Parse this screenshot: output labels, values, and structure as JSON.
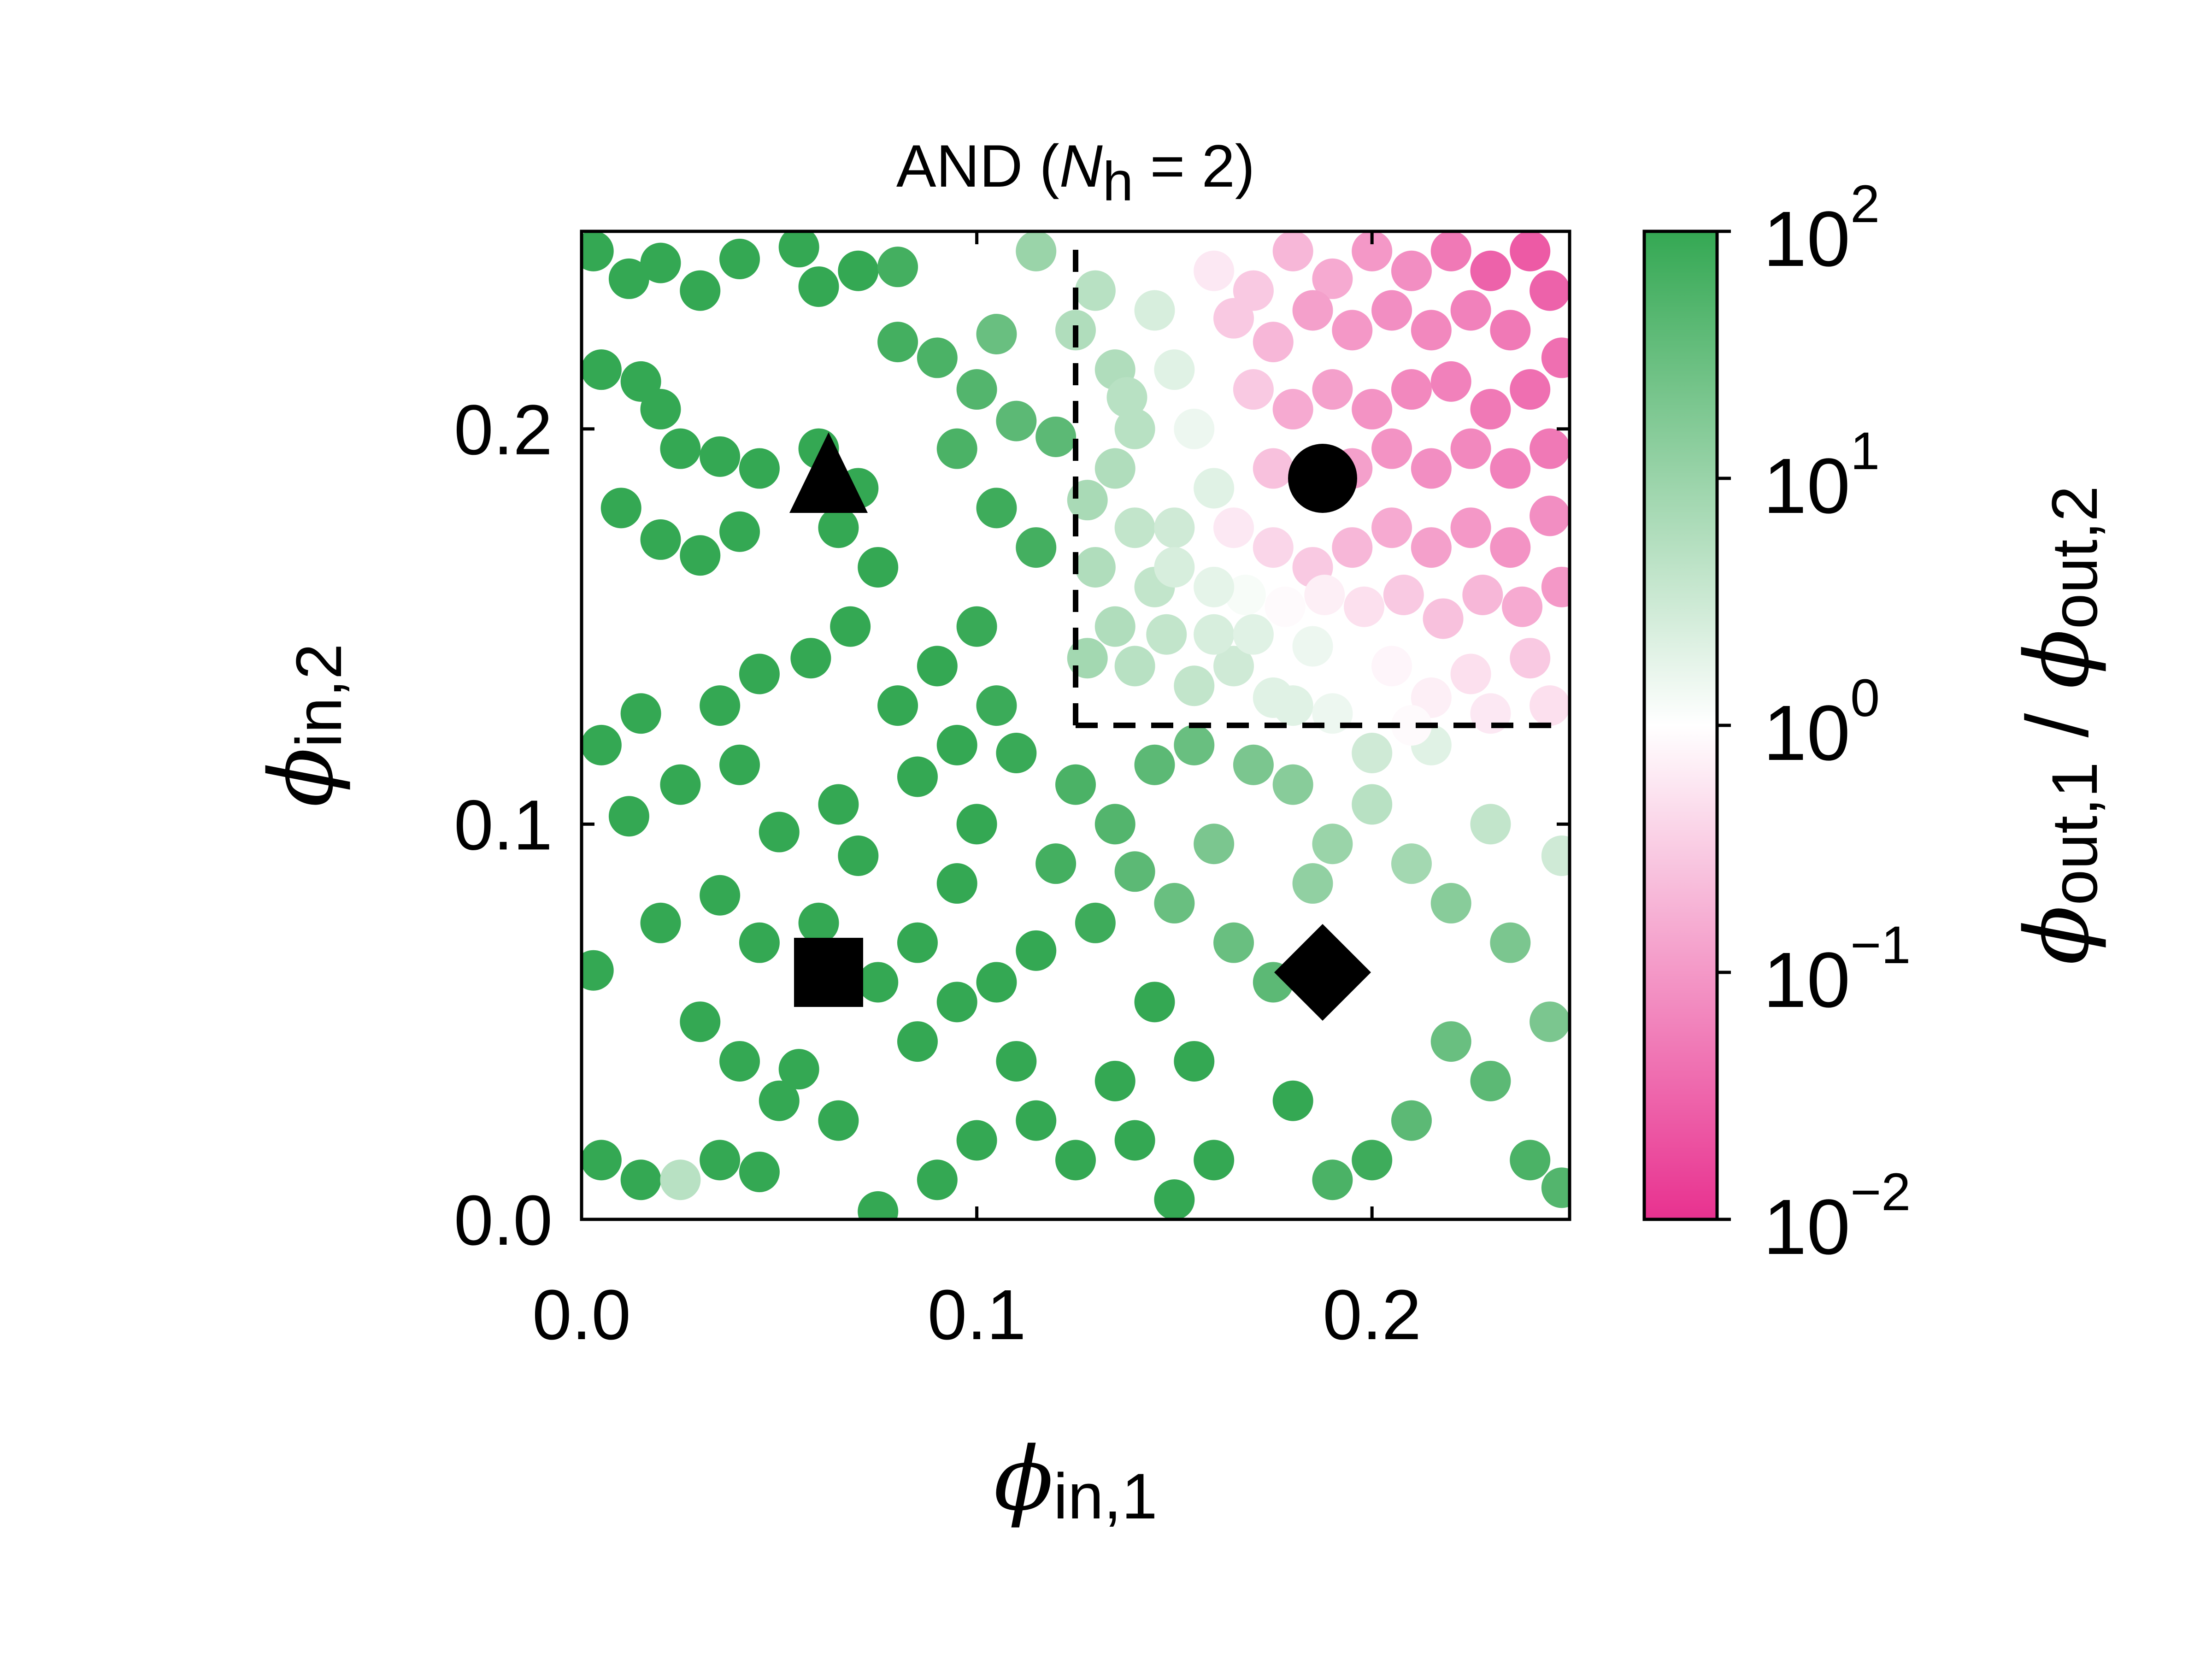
{
  "chart_data": {
    "type": "scatter",
    "title": "AND (N_h = 2)",
    "title_parts": {
      "prefix": "AND (",
      "var": "N",
      "sub": "h",
      "suffix": " = 2)"
    },
    "xlabel": {
      "symbol": "ϕ",
      "sub": "in,1"
    },
    "ylabel": {
      "symbol": "ϕ",
      "sub": "in,2"
    },
    "xlim": [
      0.0,
      0.25
    ],
    "ylim": [
      0.0,
      0.25
    ],
    "xticks": [
      0.0,
      0.1,
      0.2
    ],
    "yticks": [
      0.0,
      0.1,
      0.2
    ],
    "xtick_labels": [
      "0.0",
      "0.1",
      "0.2"
    ],
    "ytick_labels": [
      "0.0",
      "0.1",
      "0.2"
    ],
    "grid": false,
    "threshold": {
      "x": 0.125,
      "y": 0.125,
      "style": "dashed"
    },
    "colorbar": {
      "label": {
        "symbol1": "ϕ",
        "sub1": "out,1",
        "sep": " / ",
        "symbol2": "ϕ",
        "sub2": "out,2"
      },
      "scale": "log",
      "range": [
        0.01,
        100
      ],
      "ticks": [
        {
          "value": 100,
          "base": "10",
          "exp": "2"
        },
        {
          "value": 10,
          "base": "10",
          "exp": "1"
        },
        {
          "value": 1,
          "base": "10",
          "exp": "0"
        },
        {
          "value": 0.1,
          "base": "10",
          "exp": "−1"
        },
        {
          "value": 0.01,
          "base": "10",
          "exp": "−2"
        }
      ],
      "colors": {
        "high": "#34a853",
        "mid": "#ffffff",
        "low": "#e8318f"
      }
    },
    "markers": [
      {
        "shape": "square",
        "x": 0.0625,
        "y": 0.0625
      },
      {
        "shape": "diamond",
        "x": 0.1875,
        "y": 0.0625
      },
      {
        "shape": "triangle",
        "x": 0.0625,
        "y": 0.1875
      },
      {
        "shape": "circle",
        "x": 0.1875,
        "y": 0.1875
      }
    ],
    "points": [
      [
        0.003,
        0.245,
        100
      ],
      [
        0.012,
        0.238,
        100
      ],
      [
        0.02,
        0.242,
        100
      ],
      [
        0.03,
        0.235,
        100
      ],
      [
        0.04,
        0.243,
        100
      ],
      [
        0.055,
        0.246,
        100
      ],
      [
        0.06,
        0.236,
        100
      ],
      [
        0.07,
        0.24,
        100
      ],
      [
        0.08,
        0.241,
        70
      ],
      [
        0.005,
        0.215,
        100
      ],
      [
        0.015,
        0.212,
        100
      ],
      [
        0.02,
        0.205,
        100
      ],
      [
        0.025,
        0.195,
        100
      ],
      [
        0.035,
        0.193,
        100
      ],
      [
        0.045,
        0.19,
        100
      ],
      [
        0.01,
        0.18,
        100
      ],
      [
        0.02,
        0.172,
        100
      ],
      [
        0.03,
        0.168,
        100
      ],
      [
        0.04,
        0.174,
        100
      ],
      [
        0.06,
        0.195,
        100
      ],
      [
        0.065,
        0.175,
        100
      ],
      [
        0.07,
        0.185,
        100
      ],
      [
        0.075,
        0.165,
        100
      ],
      [
        0.068,
        0.15,
        100
      ],
      [
        0.058,
        0.142,
        100
      ],
      [
        0.045,
        0.138,
        100
      ],
      [
        0.035,
        0.13,
        100
      ],
      [
        0.015,
        0.128,
        100
      ],
      [
        0.005,
        0.12,
        100
      ],
      [
        0.012,
        0.102,
        100
      ],
      [
        0.025,
        0.11,
        100
      ],
      [
        0.04,
        0.115,
        100
      ],
      [
        0.05,
        0.098,
        100
      ],
      [
        0.065,
        0.105,
        100
      ],
      [
        0.07,
        0.092,
        100
      ],
      [
        0.08,
        0.13,
        100
      ],
      [
        0.085,
        0.112,
        100
      ],
      [
        0.09,
        0.14,
        100
      ],
      [
        0.095,
        0.12,
        100
      ],
      [
        0.1,
        0.15,
        90
      ],
      [
        0.105,
        0.13,
        85
      ],
      [
        0.11,
        0.118,
        90
      ],
      [
        0.1,
        0.1,
        100
      ],
      [
        0.095,
        0.085,
        100
      ],
      [
        0.085,
        0.07,
        100
      ],
      [
        0.075,
        0.06,
        100
      ],
      [
        0.06,
        0.075,
        100
      ],
      [
        0.045,
        0.07,
        100
      ],
      [
        0.035,
        0.082,
        100
      ],
      [
        0.02,
        0.075,
        100
      ],
      [
        0.003,
        0.063,
        100
      ],
      [
        0.03,
        0.05,
        100
      ],
      [
        0.04,
        0.04,
        100
      ],
      [
        0.05,
        0.03,
        100
      ],
      [
        0.035,
        0.015,
        100
      ],
      [
        0.015,
        0.01,
        100
      ],
      [
        0.005,
        0.015,
        100
      ],
      [
        0.025,
        0.01,
        5
      ],
      [
        0.045,
        0.012,
        100
      ],
      [
        0.055,
        0.038,
        100
      ],
      [
        0.065,
        0.025,
        100
      ],
      [
        0.075,
        0.002,
        100
      ],
      [
        0.085,
        0.045,
        100
      ],
      [
        0.095,
        0.055,
        100
      ],
      [
        0.105,
        0.06,
        100
      ],
      [
        0.115,
        0.068,
        100
      ],
      [
        0.11,
        0.04,
        100
      ],
      [
        0.1,
        0.02,
        100
      ],
      [
        0.09,
        0.01,
        100
      ],
      [
        0.115,
        0.025,
        100
      ],
      [
        0.125,
        0.015,
        100
      ],
      [
        0.135,
        0.035,
        100
      ],
      [
        0.14,
        0.02,
        100
      ],
      [
        0.15,
        0.005,
        100
      ],
      [
        0.16,
        0.015,
        100
      ],
      [
        0.155,
        0.04,
        100
      ],
      [
        0.145,
        0.055,
        100
      ],
      [
        0.13,
        0.075,
        80
      ],
      [
        0.12,
        0.09,
        70
      ],
      [
        0.125,
        0.11,
        60
      ],
      [
        0.135,
        0.1,
        50
      ],
      [
        0.14,
        0.088,
        40
      ],
      [
        0.15,
        0.08,
        30
      ],
      [
        0.16,
        0.095,
        20
      ],
      [
        0.165,
        0.07,
        30
      ],
      [
        0.175,
        0.06,
        40
      ],
      [
        0.18,
        0.03,
        100
      ],
      [
        0.19,
        0.01,
        60
      ],
      [
        0.2,
        0.015,
        80
      ],
      [
        0.21,
        0.025,
        40
      ],
      [
        0.22,
        0.045,
        30
      ],
      [
        0.23,
        0.035,
        40
      ],
      [
        0.24,
        0.015,
        60
      ],
      [
        0.248,
        0.008,
        50
      ],
      [
        0.245,
        0.05,
        20
      ],
      [
        0.235,
        0.07,
        20
      ],
      [
        0.22,
        0.08,
        15
      ],
      [
        0.21,
        0.09,
        8
      ],
      [
        0.2,
        0.105,
        5
      ],
      [
        0.19,
        0.095,
        10
      ],
      [
        0.18,
        0.11,
        15
      ],
      [
        0.17,
        0.115,
        20
      ],
      [
        0.155,
        0.12,
        30
      ],
      [
        0.145,
        0.115,
        40
      ],
      [
        0.23,
        0.1,
        4
      ],
      [
        0.248,
        0.092,
        3
      ],
      [
        0.215,
        0.12,
        2
      ],
      [
        0.2,
        0.118,
        3
      ],
      [
        0.185,
        0.085,
        12
      ],
      [
        0.08,
        0.222,
        70
      ],
      [
        0.09,
        0.218,
        60
      ],
      [
        0.1,
        0.21,
        50
      ],
      [
        0.11,
        0.202,
        40
      ],
      [
        0.095,
        0.195,
        60
      ],
      [
        0.105,
        0.18,
        80
      ],
      [
        0.115,
        0.17,
        70
      ],
      [
        0.12,
        0.198,
        40
      ],
      [
        0.105,
        0.224,
        30
      ],
      [
        0.115,
        0.245,
        10
      ],
      [
        0.125,
        0.225,
        6
      ],
      [
        0.13,
        0.235,
        5
      ],
      [
        0.135,
        0.215,
        6
      ],
      [
        0.14,
        0.2,
        5
      ],
      [
        0.135,
        0.19,
        6
      ],
      [
        0.14,
        0.175,
        4
      ],
      [
        0.145,
        0.16,
        4
      ],
      [
        0.13,
        0.165,
        6
      ],
      [
        0.135,
        0.15,
        6
      ],
      [
        0.14,
        0.14,
        5
      ],
      [
        0.148,
        0.148,
        4
      ],
      [
        0.155,
        0.135,
        4
      ],
      [
        0.165,
        0.14,
        3
      ],
      [
        0.175,
        0.132,
        2
      ],
      [
        0.185,
        0.145,
        1.5
      ],
      [
        0.195,
        0.135,
        1
      ],
      [
        0.205,
        0.14,
        0.8
      ],
      [
        0.215,
        0.132,
        0.7
      ],
      [
        0.225,
        0.138,
        0.5
      ],
      [
        0.24,
        0.142,
        0.3
      ],
      [
        0.15,
        0.175,
        3
      ],
      [
        0.16,
        0.185,
        2
      ],
      [
        0.155,
        0.2,
        1.5
      ],
      [
        0.15,
        0.215,
        2
      ],
      [
        0.145,
        0.23,
        2.5
      ],
      [
        0.15,
        0.245,
        1
      ],
      [
        0.16,
        0.24,
        0.6
      ],
      [
        0.17,
        0.235,
        0.3
      ],
      [
        0.18,
        0.245,
        0.2
      ],
      [
        0.19,
        0.238,
        0.15
      ],
      [
        0.2,
        0.245,
        0.1
      ],
      [
        0.21,
        0.24,
        0.08
      ],
      [
        0.22,
        0.245,
        0.05
      ],
      [
        0.23,
        0.24,
        0.03
      ],
      [
        0.24,
        0.245,
        0.025
      ],
      [
        0.245,
        0.235,
        0.03
      ],
      [
        0.235,
        0.225,
        0.05
      ],
      [
        0.225,
        0.23,
        0.06
      ],
      [
        0.215,
        0.225,
        0.07
      ],
      [
        0.205,
        0.23,
        0.08
      ],
      [
        0.195,
        0.225,
        0.1
      ],
      [
        0.185,
        0.23,
        0.12
      ],
      [
        0.175,
        0.222,
        0.2
      ],
      [
        0.165,
        0.228,
        0.3
      ],
      [
        0.17,
        0.21,
        0.3
      ],
      [
        0.18,
        0.205,
        0.15
      ],
      [
        0.19,
        0.21,
        0.12
      ],
      [
        0.2,
        0.205,
        0.09
      ],
      [
        0.21,
        0.21,
        0.07
      ],
      [
        0.22,
        0.212,
        0.06
      ],
      [
        0.23,
        0.205,
        0.05
      ],
      [
        0.24,
        0.21,
        0.04
      ],
      [
        0.248,
        0.218,
        0.04
      ],
      [
        0.245,
        0.195,
        0.05
      ],
      [
        0.235,
        0.19,
        0.06
      ],
      [
        0.225,
        0.195,
        0.07
      ],
      [
        0.215,
        0.19,
        0.08
      ],
      [
        0.205,
        0.195,
        0.09
      ],
      [
        0.195,
        0.19,
        0.12
      ],
      [
        0.175,
        0.19,
        0.25
      ],
      [
        0.165,
        0.175,
        0.6
      ],
      [
        0.175,
        0.17,
        0.4
      ],
      [
        0.185,
        0.165,
        0.3
      ],
      [
        0.195,
        0.17,
        0.2
      ],
      [
        0.205,
        0.175,
        0.15
      ],
      [
        0.215,
        0.17,
        0.12
      ],
      [
        0.225,
        0.175,
        0.1
      ],
      [
        0.235,
        0.17,
        0.09
      ],
      [
        0.245,
        0.178,
        0.08
      ],
      [
        0.248,
        0.16,
        0.1
      ],
      [
        0.238,
        0.155,
        0.15
      ],
      [
        0.228,
        0.158,
        0.2
      ],
      [
        0.218,
        0.152,
        0.25
      ],
      [
        0.208,
        0.158,
        0.3
      ],
      [
        0.198,
        0.155,
        0.5
      ],
      [
        0.188,
        0.158,
        0.7
      ],
      [
        0.178,
        0.155,
        0.9
      ],
      [
        0.168,
        0.158,
        1.2
      ],
      [
        0.16,
        0.16,
        1.8
      ],
      [
        0.15,
        0.165,
        2.5
      ],
      [
        0.138,
        0.208,
        5
      ],
      [
        0.128,
        0.182,
        7
      ],
      [
        0.128,
        0.142,
        8
      ],
      [
        0.16,
        0.148,
        2.5
      ],
      [
        0.17,
        0.148,
        2
      ],
      [
        0.18,
        0.13,
        2
      ],
      [
        0.19,
        0.128,
        1.5
      ],
      [
        0.21,
        0.125,
        0.9
      ],
      [
        0.23,
        0.128,
        0.6
      ],
      [
        0.245,
        0.13,
        0.5
      ]
    ]
  }
}
